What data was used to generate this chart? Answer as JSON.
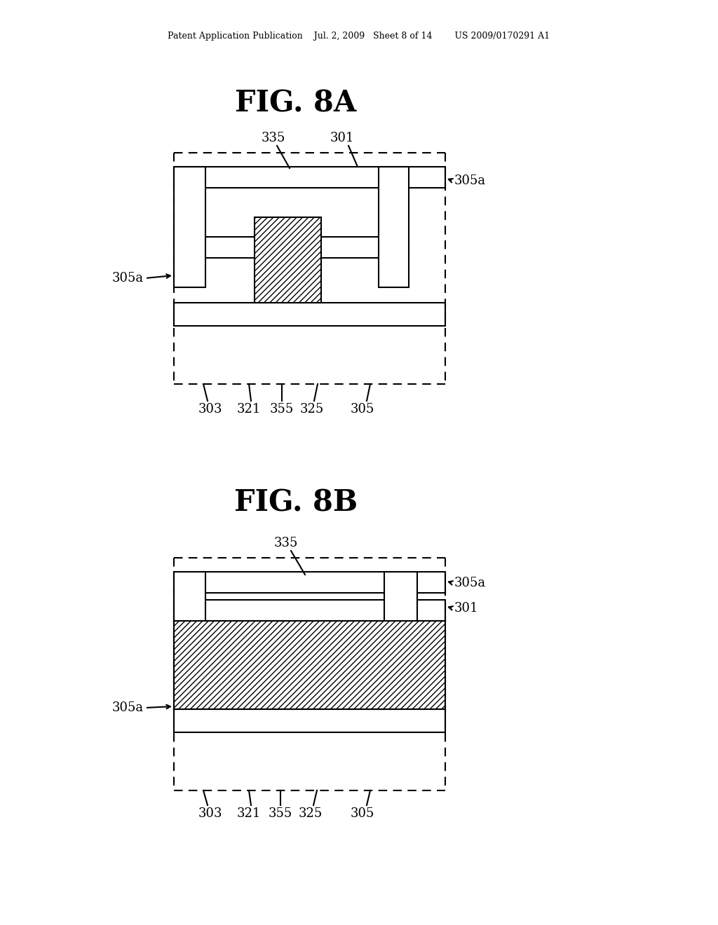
{
  "bg_color": "#ffffff",
  "header_text": "Patent Application Publication    Jul. 2, 2009   Sheet 8 of 14        US 2009/0170291 A1",
  "fig8a_title": "FIG. 8A",
  "fig8b_title": "FIG. 8B",
  "line_color": "#000000",
  "hatch_pattern": "////",
  "lw": 1.5,
  "label_fs": 13
}
